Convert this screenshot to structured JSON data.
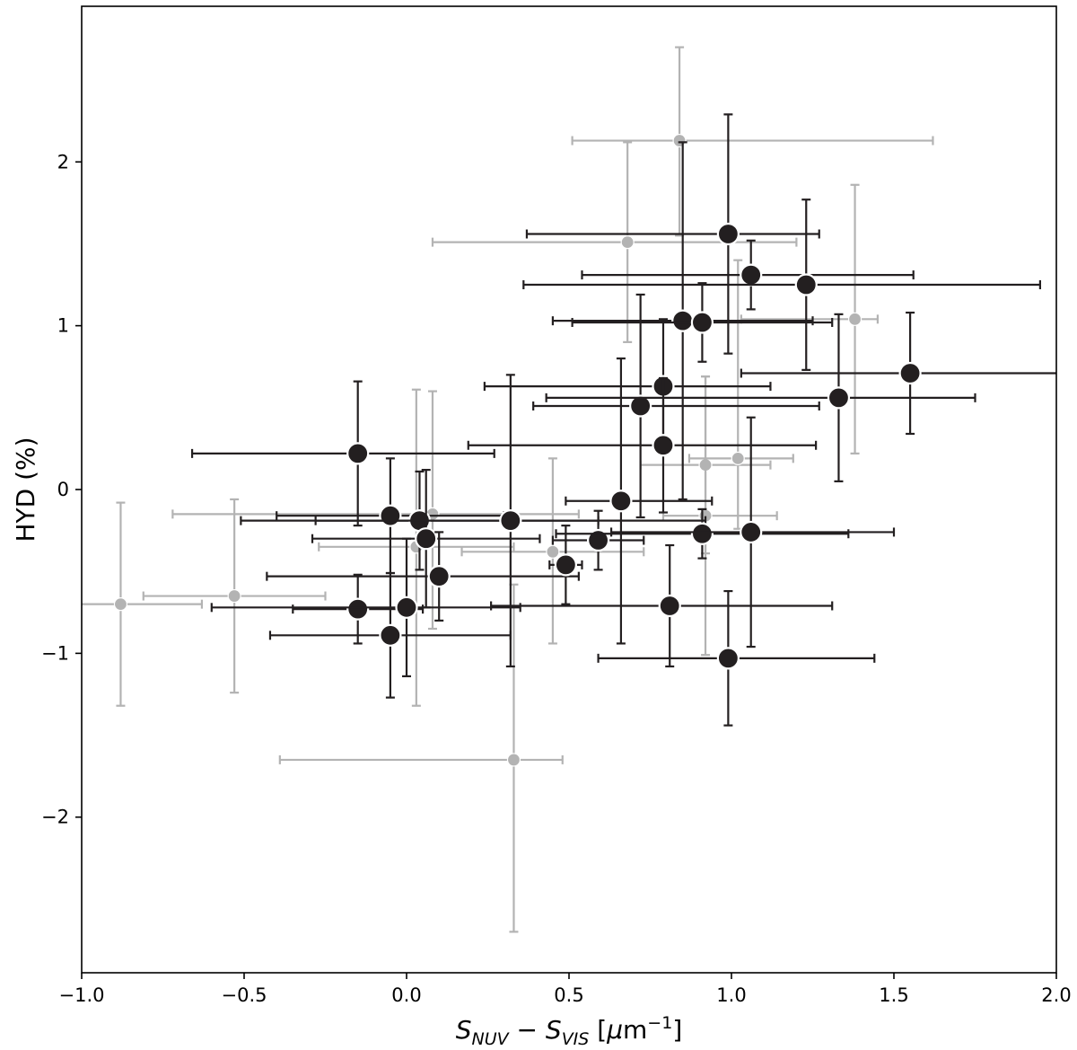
{
  "chart_data": {
    "type": "scatter",
    "title": "",
    "xlabel": "S_NUV − S_VIS [μm⁻¹]",
    "ylabel": "HYD (%)",
    "xlim": [
      -1.0,
      2.0
    ],
    "ylim": [
      -2.95,
      2.95
    ],
    "xticks": [
      -1.0,
      -0.5,
      0.0,
      0.5,
      1.0,
      1.5,
      2.0
    ],
    "xtick_labels": [
      "−1.0",
      "−0.5",
      "0.0",
      "0.5",
      "1.0",
      "1.5",
      "2.0"
    ],
    "yticks": [
      -2,
      -1,
      0,
      1,
      2
    ],
    "ytick_labels": [
      "−2",
      "−1",
      "0",
      "1",
      "2"
    ],
    "grid": false,
    "legend": "none",
    "colors": {
      "primary": "#231f20",
      "secondary": "#b3b3b3",
      "marker_edge": "#ffffff"
    },
    "series": [
      {
        "color": "#b3b3b3",
        "points": [
          {
            "x": -0.88,
            "y": -0.7,
            "xerr": [
              0.25,
              0.25
            ],
            "yerr": [
              0.62,
              0.62
            ]
          },
          {
            "x": -0.53,
            "y": -0.65,
            "xerr": [
              0.28,
              0.28
            ],
            "yerr": [
              0.59,
              0.59
            ]
          },
          {
            "x": 0.08,
            "y": -0.15,
            "xerr": [
              0.8,
              0.45
            ],
            "yerr": [
              0.7,
              0.75
            ]
          },
          {
            "x": 0.03,
            "y": -0.35,
            "xerr": [
              0.3,
              0.3
            ],
            "yerr": [
              0.97,
              0.96
            ]
          },
          {
            "x": 0.45,
            "y": -0.38,
            "xerr": [
              0.28,
              0.28
            ],
            "yerr": [
              0.56,
              0.57
            ]
          },
          {
            "x": 0.33,
            "y": -1.65,
            "xerr": [
              0.72,
              0.15
            ],
            "yerr": [
              1.05,
              1.07
            ]
          },
          {
            "x": 0.68,
            "y": 1.51,
            "xerr": [
              0.6,
              0.52
            ],
            "yerr": [
              0.61,
              0.61
            ]
          },
          {
            "x": 0.84,
            "y": 2.13,
            "xerr": [
              0.33,
              0.78
            ],
            "yerr": [
              0.58,
              0.57
            ]
          },
          {
            "x": 1.38,
            "y": 1.04,
            "xerr": [
              0.35,
              0.07
            ],
            "yerr": [
              0.82,
              0.82
            ]
          },
          {
            "x": 0.92,
            "y": 0.15,
            "xerr": [
              0.2,
              0.2
            ],
            "yerr": [
              0.54,
              0.54
            ]
          },
          {
            "x": 1.02,
            "y": 0.19,
            "xerr": [
              0.15,
              0.17
            ],
            "yerr": [
              0.43,
              1.21
            ]
          },
          {
            "x": 0.92,
            "y": -0.16,
            "xerr": [
              0.13,
              0.22
            ],
            "yerr": [
              0.85,
              0.85
            ]
          }
        ]
      },
      {
        "color": "#231f20",
        "points": [
          {
            "x": -0.15,
            "y": 0.22,
            "xerr": [
              0.51,
              0.42
            ],
            "yerr": [
              0.44,
              0.44
            ]
          },
          {
            "x": -0.05,
            "y": -0.16,
            "xerr": [
              0.35,
              0.35
            ],
            "yerr": [
              0.35,
              0.35
            ]
          },
          {
            "x": 0.04,
            "y": -0.19,
            "xerr": [
              0.55,
              0.55
            ],
            "yerr": [
              0.3,
              0.3
            ]
          },
          {
            "x": 0.06,
            "y": -0.3,
            "xerr": [
              0.35,
              0.35
            ],
            "yerr": [
              0.42,
              0.42
            ]
          },
          {
            "x": 0.1,
            "y": -0.53,
            "xerr": [
              0.53,
              0.43
            ],
            "yerr": [
              0.27,
              0.27
            ]
          },
          {
            "x": -0.15,
            "y": -0.73,
            "xerr": [
              0.2,
              0.2
            ],
            "yerr": [
              0.21,
              0.21
            ]
          },
          {
            "x": 0.0,
            "y": -0.72,
            "xerr": [
              0.6,
              0.35
            ],
            "yerr": [
              0.42,
              0.42
            ]
          },
          {
            "x": -0.05,
            "y": -0.89,
            "xerr": [
              0.37,
              0.37
            ],
            "yerr": [
              0.38,
              0.38
            ]
          },
          {
            "x": 0.32,
            "y": -0.19,
            "xerr": [
              0.6,
              0.6
            ],
            "yerr": [
              0.89,
              0.89
            ]
          },
          {
            "x": 0.49,
            "y": -0.46,
            "xerr": [
              0.05,
              0.05
            ],
            "yerr": [
              0.24,
              0.24
            ]
          },
          {
            "x": 0.59,
            "y": -0.31,
            "xerr": [
              0.14,
              0.14
            ],
            "yerr": [
              0.18,
              0.18
            ]
          },
          {
            "x": 0.66,
            "y": -0.07,
            "xerr": [
              0.17,
              0.28
            ],
            "yerr": [
              0.87,
              0.87
            ]
          },
          {
            "x": 0.72,
            "y": 0.51,
            "xerr": [
              0.33,
              0.55
            ],
            "yerr": [
              0.68,
              0.68
            ]
          },
          {
            "x": 0.79,
            "y": 0.63,
            "xerr": [
              0.55,
              0.33
            ],
            "yerr": [
              0.41,
              0.41
            ]
          },
          {
            "x": 0.79,
            "y": 0.27,
            "xerr": [
              0.6,
              0.47
            ],
            "yerr": [
              0.41,
              0.41
            ]
          },
          {
            "x": 0.85,
            "y": 1.03,
            "xerr": [
              0.4,
              0.4
            ],
            "yerr": [
              1.09,
              1.09
            ]
          },
          {
            "x": 0.91,
            "y": 1.02,
            "xerr": [
              0.4,
              0.4
            ],
            "yerr": [
              0.24,
              0.24
            ]
          },
          {
            "x": 0.99,
            "y": 1.56,
            "xerr": [
              0.62,
              0.28
            ],
            "yerr": [
              0.73,
              0.73
            ]
          },
          {
            "x": 1.06,
            "y": 1.31,
            "xerr": [
              0.52,
              0.5
            ],
            "yerr": [
              0.21,
              0.21
            ]
          },
          {
            "x": 1.23,
            "y": 1.25,
            "xerr": [
              0.87,
              0.72
            ],
            "yerr": [
              0.52,
              0.52
            ]
          },
          {
            "x": 1.33,
            "y": 0.56,
            "xerr": [
              0.9,
              0.42
            ],
            "yerr": [
              0.51,
              0.51
            ]
          },
          {
            "x": 1.55,
            "y": 0.71,
            "xerr": [
              0.52,
              0.5
            ],
            "yerr": [
              0.37,
              0.37
            ]
          },
          {
            "x": 0.81,
            "y": -0.71,
            "xerr": [
              0.55,
              0.5
            ],
            "yerr": [
              0.37,
              0.37
            ]
          },
          {
            "x": 0.91,
            "y": -0.27,
            "xerr": [
              0.45,
              0.45
            ],
            "yerr": [
              0.15,
              0.15
            ]
          },
          {
            "x": 1.06,
            "y": -0.26,
            "xerr": [
              0.43,
              0.44
            ],
            "yerr": [
              0.7,
              0.7
            ]
          },
          {
            "x": 0.99,
            "y": -1.03,
            "xerr": [
              0.4,
              0.45
            ],
            "yerr": [
              0.41,
              0.41
            ]
          }
        ]
      }
    ]
  }
}
